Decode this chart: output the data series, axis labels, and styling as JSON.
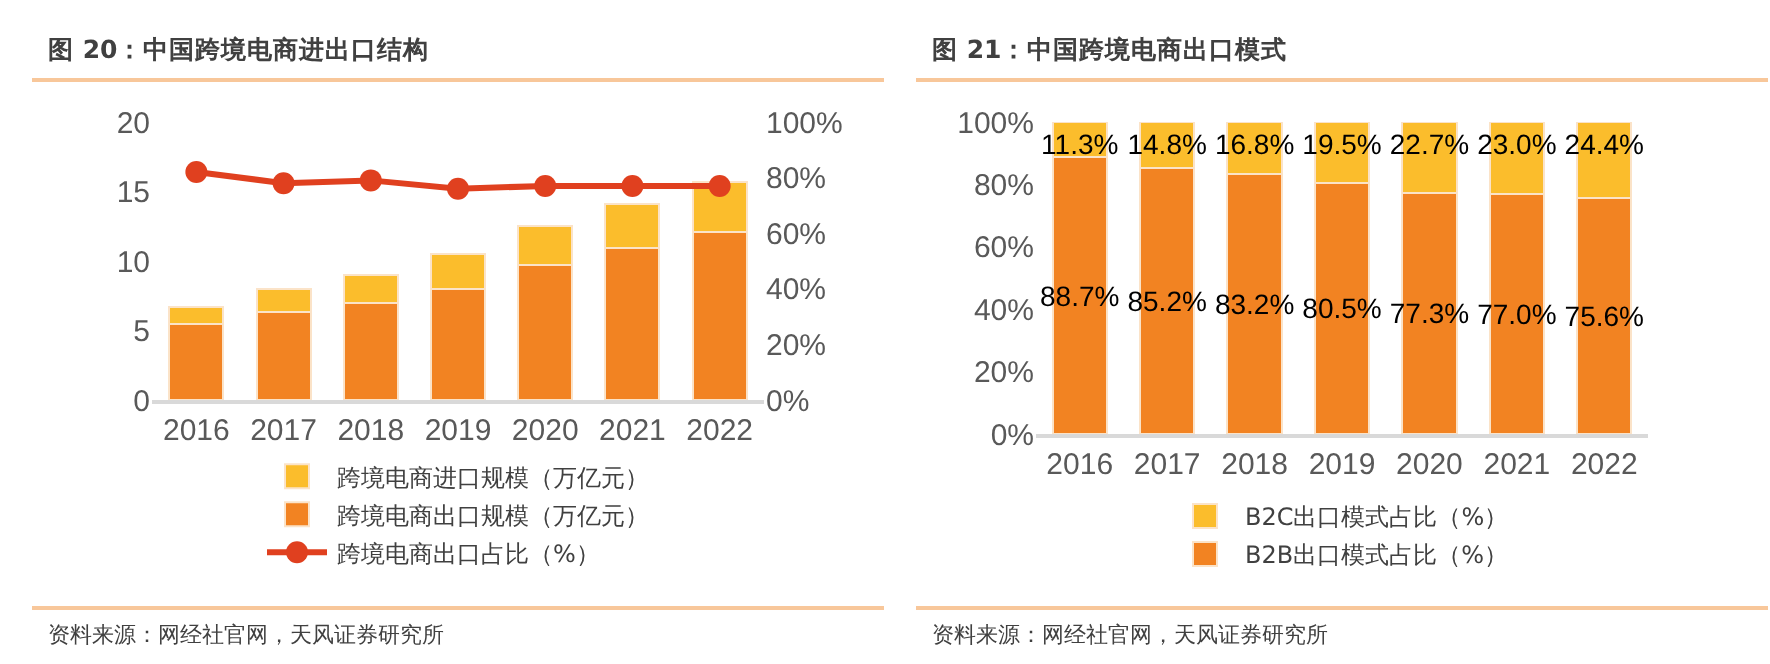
{
  "chart_data": [
    {
      "type": "bar",
      "title": "图 20：中国跨境电商进出口结构",
      "categories": [
        "2016",
        "2017",
        "2018",
        "2019",
        "2020",
        "2021",
        "2022"
      ],
      "stacked": true,
      "grid": false,
      "legend": "bottom",
      "series": [
        {
          "name": "跨境电商出口规模（万亿元）",
          "color": "#f28322",
          "values": [
            5.5,
            6.3,
            7.0,
            8.0,
            9.7,
            10.9,
            12.1
          ]
        },
        {
          "name": "跨境电商进口规模（万亿元）",
          "color": "#fbbd2c",
          "values": [
            1.2,
            1.7,
            2.0,
            2.5,
            2.8,
            3.2,
            3.6
          ]
        },
        {
          "name": "跨境电商出口占比（%）",
          "type": "line",
          "axis": "y2",
          "color": "#e0401f",
          "marker": "circle",
          "values": [
            82,
            78,
            79,
            76,
            77,
            77,
            77
          ]
        }
      ],
      "ylim": [
        0,
        20
      ],
      "yticks": [
        0,
        5,
        10,
        15,
        20
      ],
      "y2lim": [
        0,
        100
      ],
      "y2ticks": [
        {
          "value": 0,
          "label": "0%"
        },
        {
          "value": 20,
          "label": "20%"
        },
        {
          "value": 40,
          "label": "40%"
        },
        {
          "value": 60,
          "label": "60%"
        },
        {
          "value": 80,
          "label": "80%"
        },
        {
          "value": 100,
          "label": "100%"
        }
      ],
      "annotations": [
        "资料来源：网经社官网，天风证券研究所"
      ]
    },
    {
      "type": "bar",
      "title": "图 21：中国跨境电商出口模式",
      "categories": [
        "2016",
        "2017",
        "2018",
        "2019",
        "2020",
        "2021",
        "2022"
      ],
      "stacked": true,
      "grid": false,
      "legend": "bottom",
      "series": [
        {
          "name": "B2B出口模式占比（%）",
          "color": "#f28322",
          "values": [
            88.7,
            85.2,
            83.2,
            80.5,
            77.3,
            77.0,
            75.6
          ],
          "value_labels": [
            "88.7%",
            "85.2%",
            "83.2%",
            "80.5%",
            "77.3%",
            "77.0%",
            "75.6%"
          ]
        },
        {
          "name": "B2C出口模式占比（%）",
          "color": "#fbbd2c",
          "values": [
            11.3,
            14.8,
            16.8,
            19.5,
            22.7,
            23.0,
            24.4
          ],
          "value_labels": [
            "11.3%",
            "14.8%",
            "16.8%",
            "19.5%",
            "22.7%",
            "23.0%",
            "24.4%"
          ]
        }
      ],
      "ylim": [
        0,
        100
      ],
      "yticks": [
        {
          "value": 0,
          "label": "0%"
        },
        {
          "value": 20,
          "label": "20%"
        },
        {
          "value": 40,
          "label": "40%"
        },
        {
          "value": 60,
          "label": "60%"
        },
        {
          "value": 80,
          "label": "80%"
        },
        {
          "value": 100,
          "label": "100%"
        }
      ],
      "annotations": [
        "资料来源：网经社官网，天风证券研究所"
      ]
    }
  ]
}
